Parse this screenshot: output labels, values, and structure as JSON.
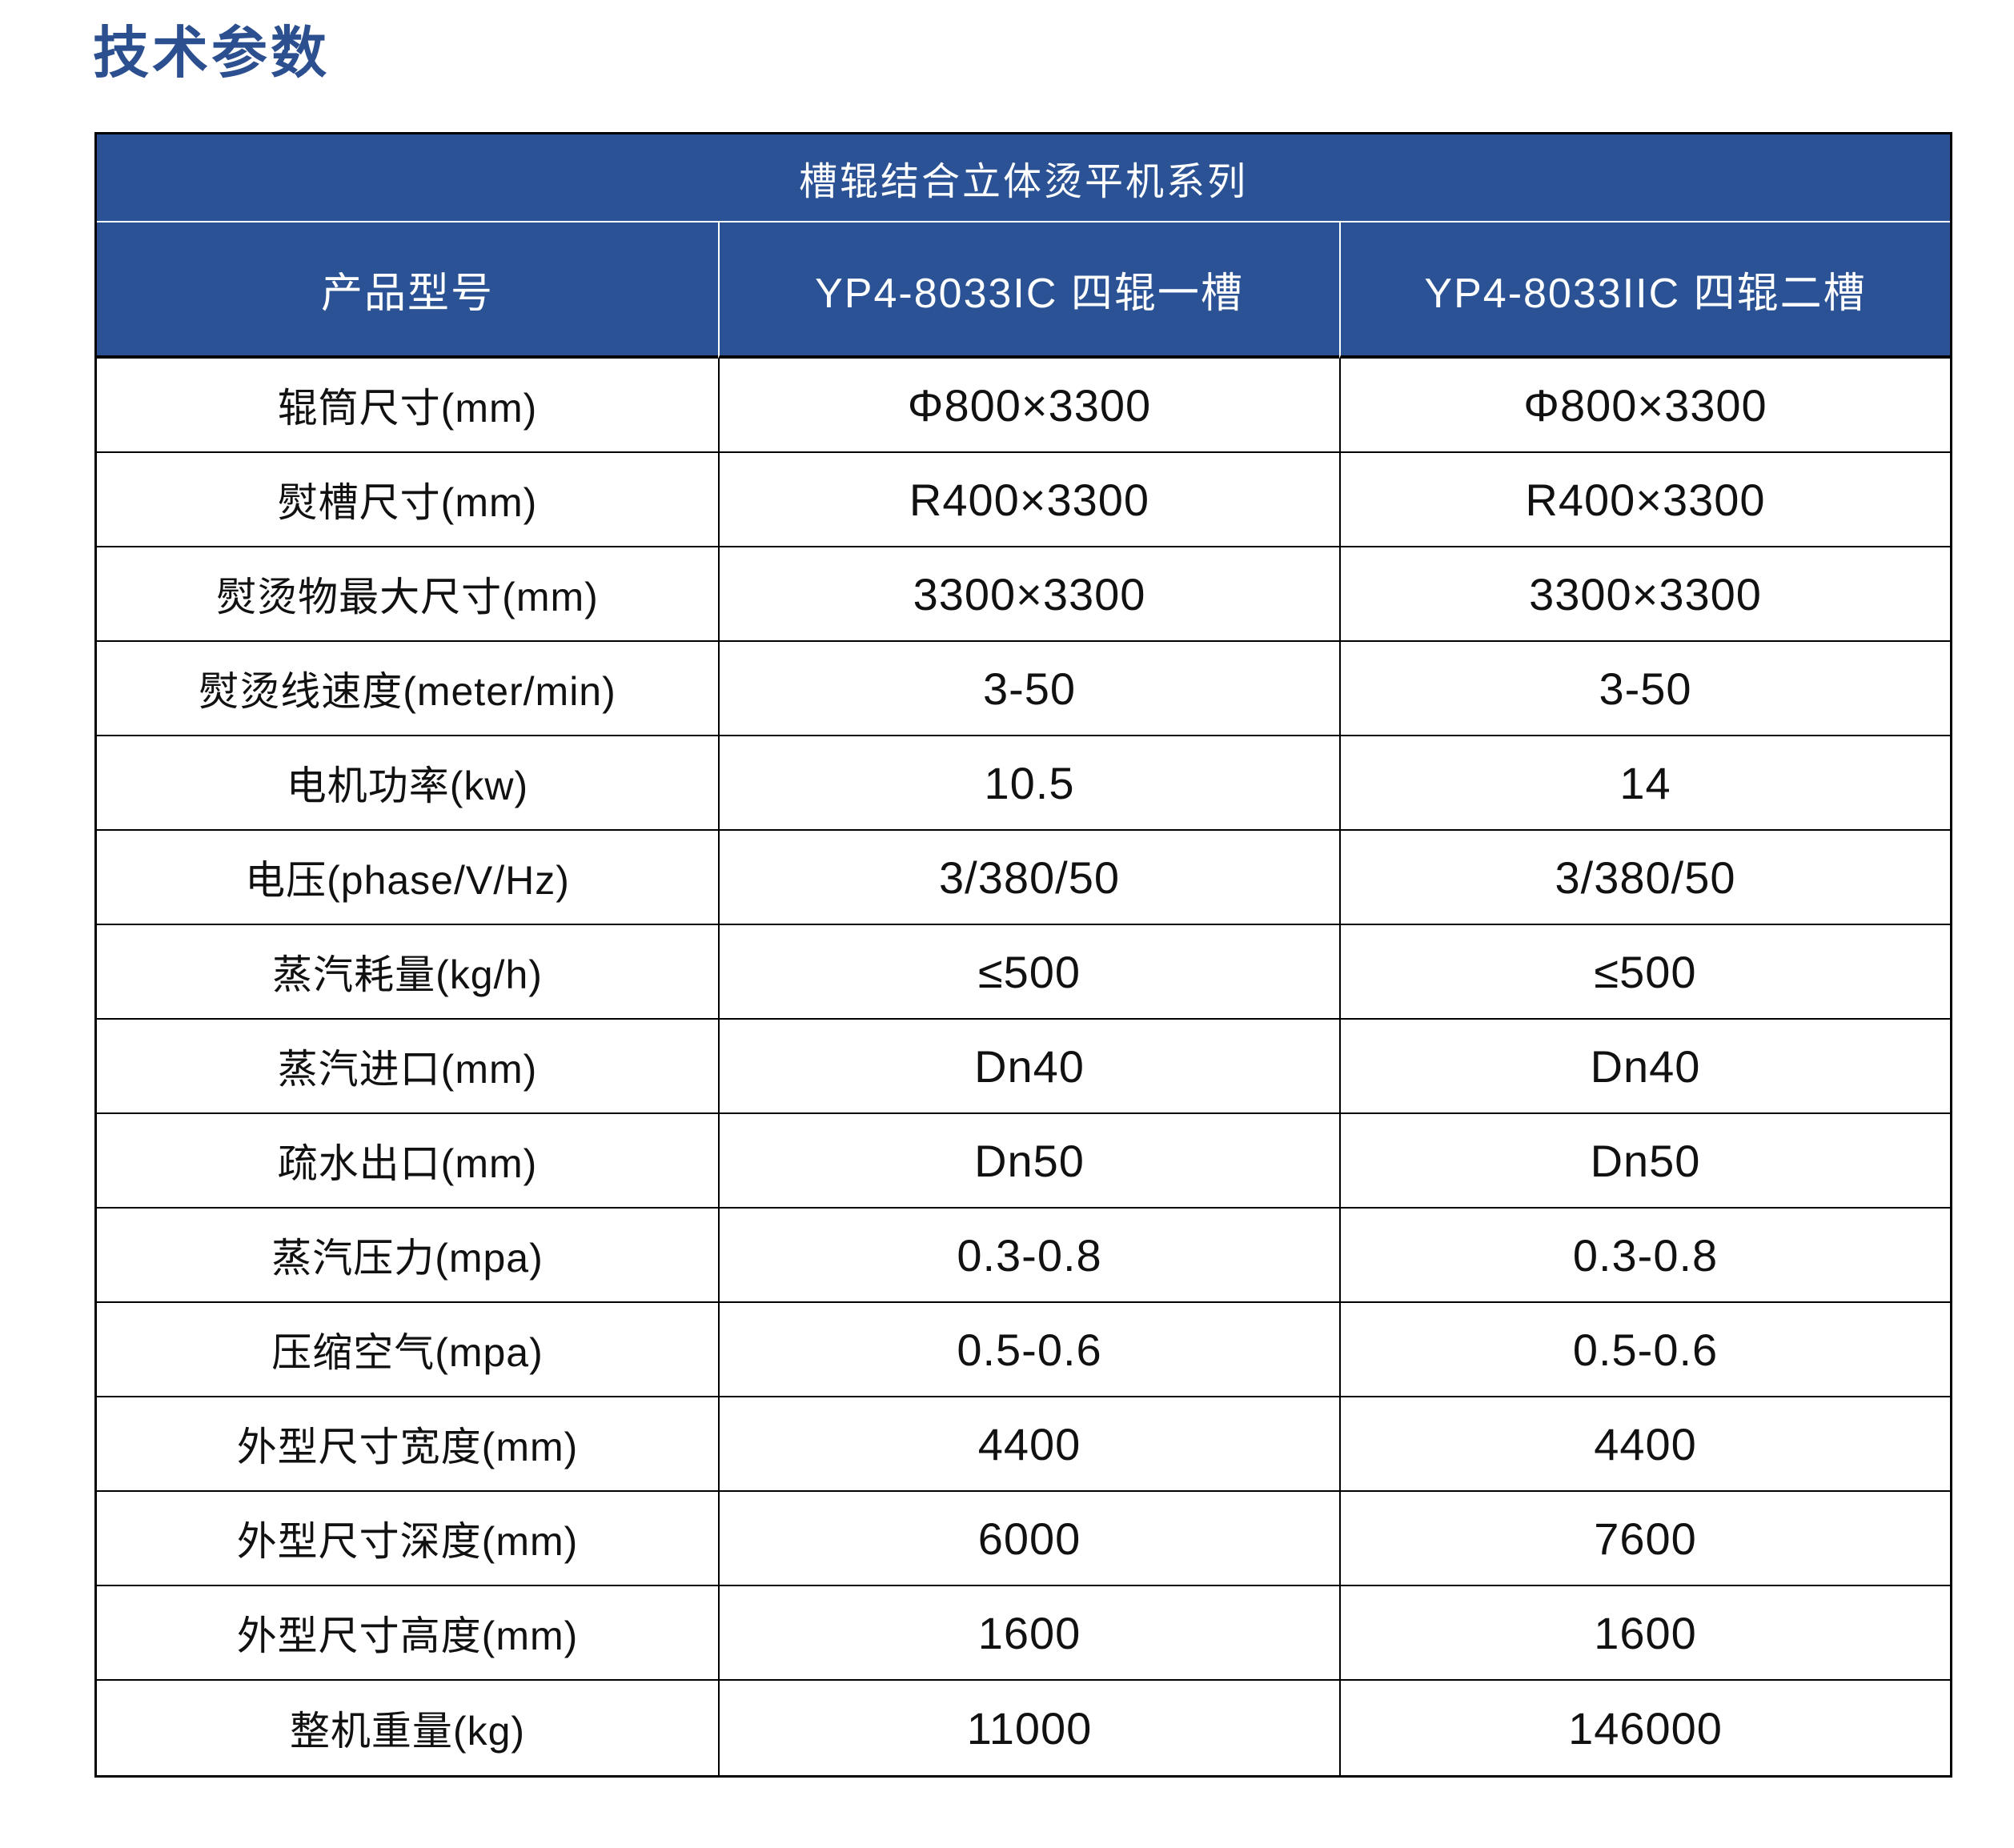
{
  "page": {
    "title": "技术参数"
  },
  "colors": {
    "brand_blue": "#2A5294",
    "title_blue": "#2C4F90",
    "border_black": "#000000",
    "header_text": "#ffffff",
    "body_text": "#111111"
  },
  "table": {
    "series_title": "槽辊结合立体烫平机系列",
    "columns": [
      "产品型号",
      "YP4-8033IC 四辊一槽",
      "YP4-8033IIC 四辊二槽"
    ],
    "rows": [
      {
        "label": "辊筒尺寸(mm)",
        "model1": "Φ800×3300",
        "model2": "Φ800×3300"
      },
      {
        "label": "熨槽尺寸(mm)",
        "model1": "R400×3300",
        "model2": "R400×3300"
      },
      {
        "label": "熨烫物最大尺寸(mm)",
        "model1": "3300×3300",
        "model2": "3300×3300"
      },
      {
        "label": "熨烫线速度(meter/min)",
        "model1": "3-50",
        "model2": "3-50"
      },
      {
        "label": "电机功率(kw)",
        "model1": "10.5",
        "model2": "14"
      },
      {
        "label": "电压(phase/V/Hz)",
        "model1": "3/380/50",
        "model2": "3/380/50"
      },
      {
        "label": "蒸汽耗量(kg/h)",
        "model1": "≤500",
        "model2": "≤500"
      },
      {
        "label": "蒸汽进口(mm)",
        "model1": "Dn40",
        "model2": "Dn40"
      },
      {
        "label": "疏水出口(mm)",
        "model1": "Dn50",
        "model2": "Dn50"
      },
      {
        "label": "蒸汽压力(mpa)",
        "model1": "0.3-0.8",
        "model2": "0.3-0.8"
      },
      {
        "label": "压缩空气(mpa)",
        "model1": "0.5-0.6",
        "model2": "0.5-0.6"
      },
      {
        "label": "外型尺寸宽度(mm)",
        "model1": "4400",
        "model2": "4400"
      },
      {
        "label": "外型尺寸深度(mm)",
        "model1": "6000",
        "model2": "7600"
      },
      {
        "label": "外型尺寸高度(mm)",
        "model1": "1600",
        "model2": "1600"
      },
      {
        "label": "整机重量(kg)",
        "model1": "11000",
        "model2": "146000"
      }
    ]
  }
}
